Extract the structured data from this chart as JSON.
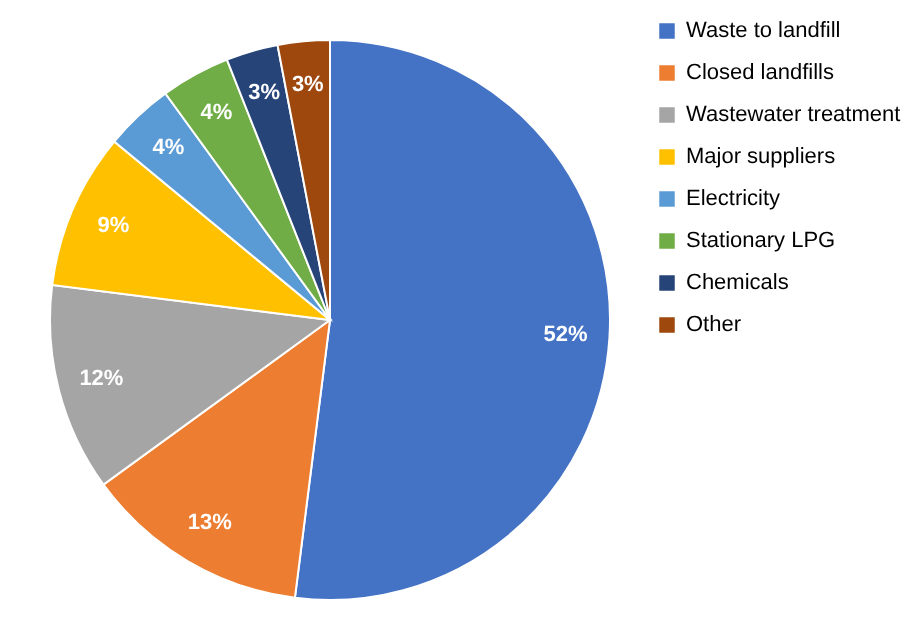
{
  "chart_data": {
    "type": "pie",
    "categories": [
      "Waste to landfill",
      "Closed landfills",
      "Wastewater treatment",
      "Major suppliers",
      "Electricity",
      "Stationary LPG",
      "Chemicals",
      "Other"
    ],
    "values": [
      52,
      13,
      12,
      9,
      4,
      4,
      3,
      3
    ],
    "value_labels": [
      "52%",
      "13%",
      "12%",
      "9%",
      "4%",
      "4%",
      "3%",
      "3%"
    ],
    "colors": [
      "#4472c4",
      "#ed7d31",
      "#a5a5a5",
      "#ffc000",
      "#5b9bd5",
      "#70ad47",
      "#264478",
      "#9e480e"
    ],
    "legend": "right"
  }
}
